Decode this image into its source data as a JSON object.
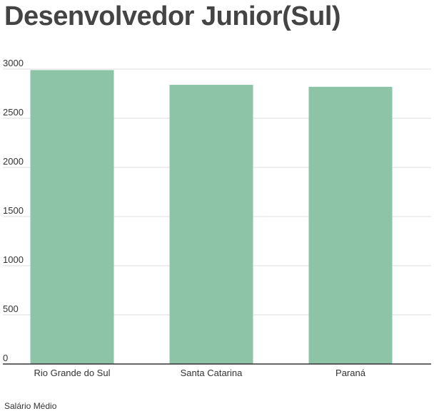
{
  "chart_data": {
    "type": "bar",
    "title": "Desenvolvedor Junior(Sul)",
    "categories": [
      "Rio Grande do Sul",
      "Santa Catarina",
      "Paraná"
    ],
    "series": [
      {
        "name": "Salário Médio",
        "values": [
          2990,
          2840,
          2820
        ]
      }
    ],
    "ylim": [
      0,
      3000
    ],
    "yticks": [
      0,
      500,
      1000,
      1500,
      2000,
      2500,
      3000
    ],
    "grid": true,
    "bar_color": "#8dc3a7",
    "legend_position": "bottom-left"
  }
}
